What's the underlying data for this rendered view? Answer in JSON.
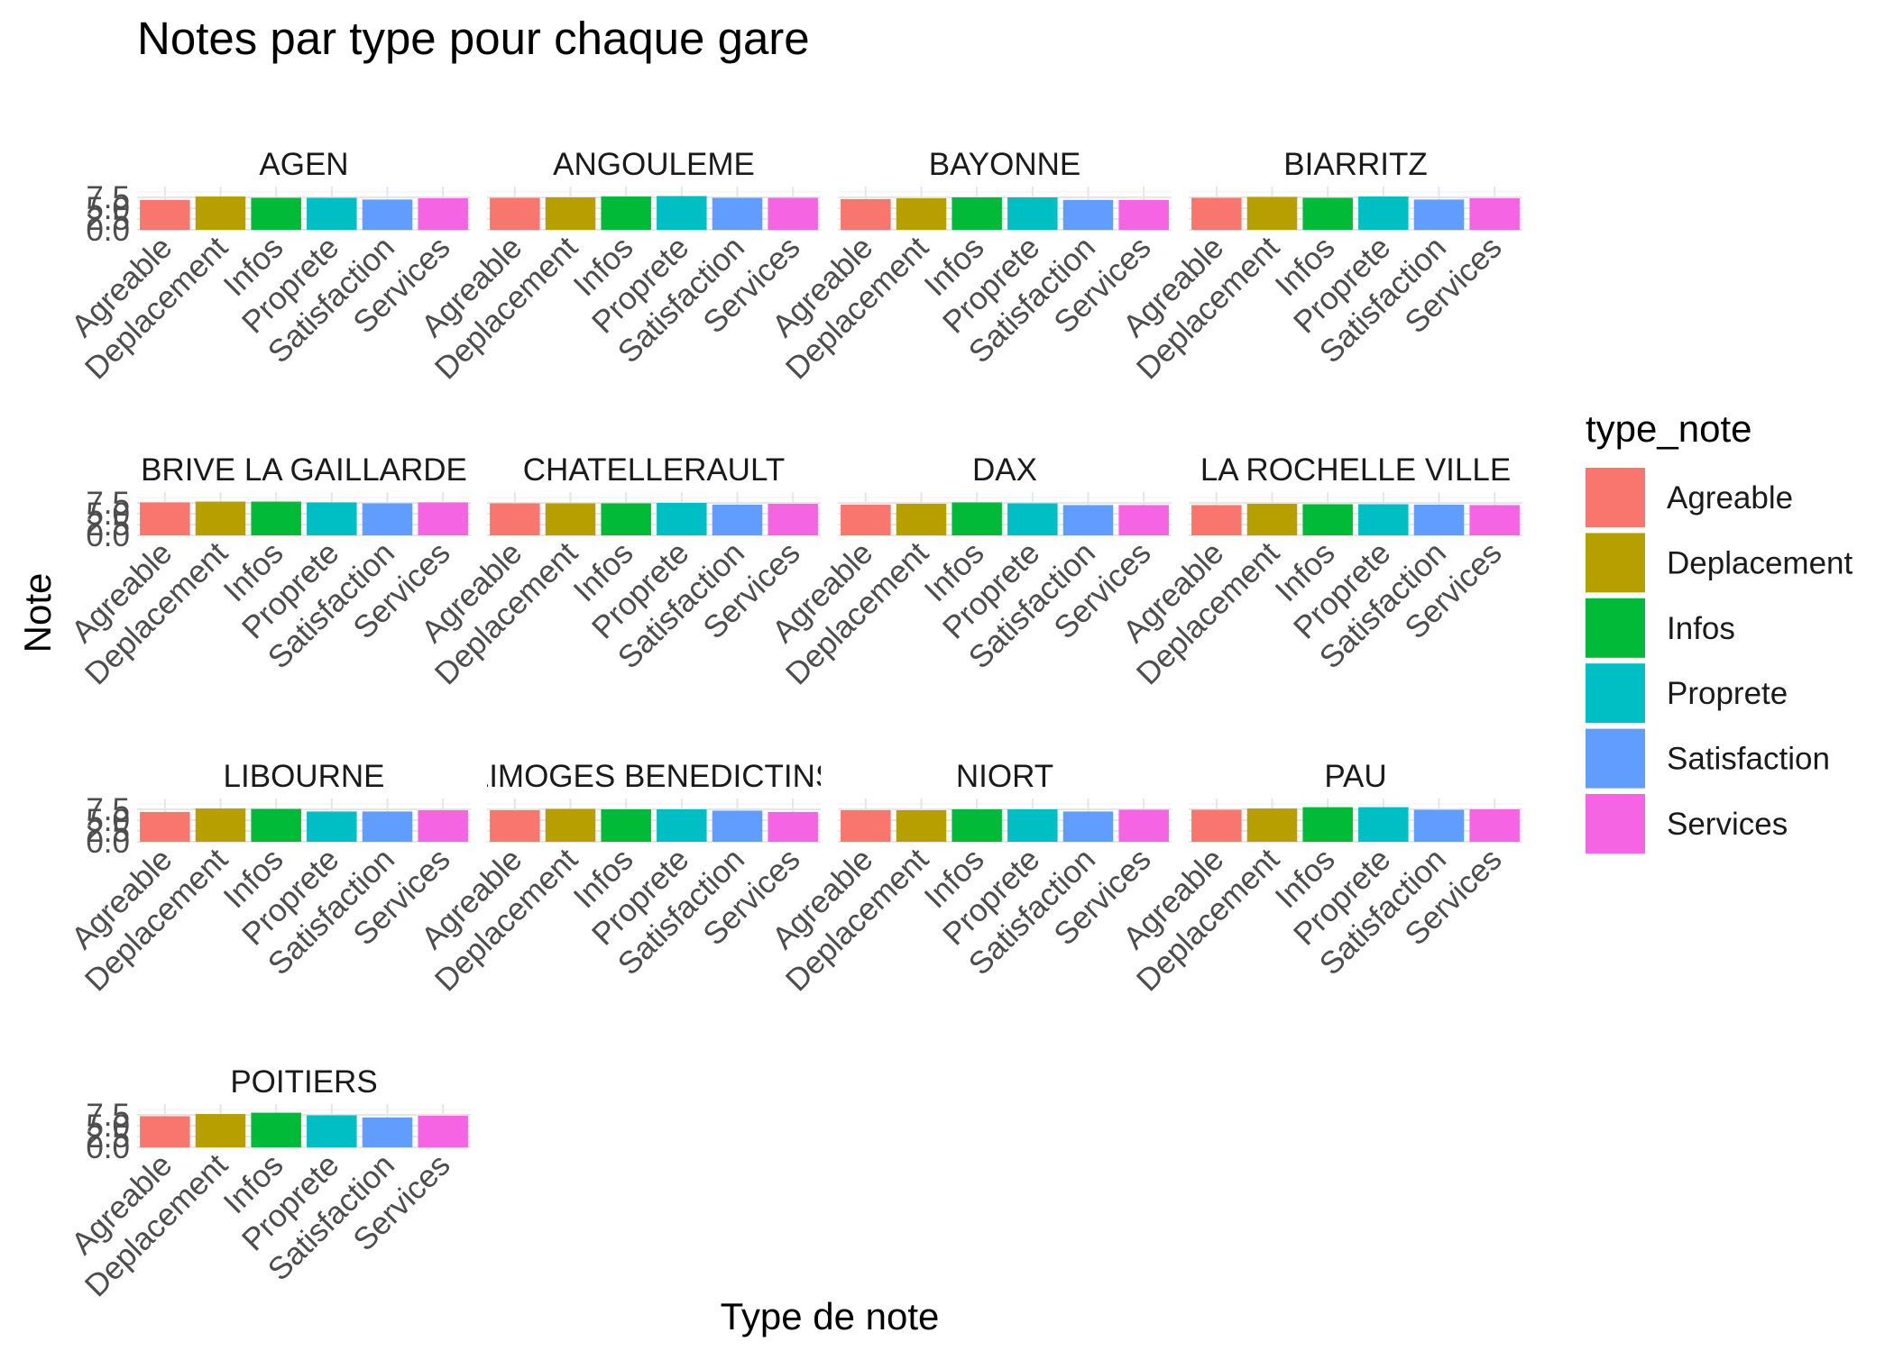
{
  "chart_data": {
    "type": "bar",
    "title": "Notes par type pour chaque gare",
    "xlabel": "Type de note",
    "ylabel": "Note",
    "ylim": [
      0,
      10
    ],
    "y_ticks": [
      "0.0",
      "2.5",
      "5.0",
      "7.5"
    ],
    "grid": true,
    "legend": {
      "title": "type_note",
      "position": "right"
    },
    "categories": [
      "Agreable",
      "Deplacement",
      "Infos",
      "Proprete",
      "Satisfaction",
      "Services"
    ],
    "colors": [
      "#F8766D",
      "#B79F00",
      "#00BA38",
      "#00BFC4",
      "#619CFF",
      "#F564E3"
    ],
    "facets": [
      {
        "name": "AGEN",
        "values": [
          6.9,
          7.7,
          7.4,
          7.4,
          7.0,
          7.3
        ]
      },
      {
        "name": "ANGOULEME",
        "values": [
          7.4,
          7.5,
          7.7,
          7.8,
          7.4,
          7.4
        ]
      },
      {
        "name": "BAYONNE",
        "values": [
          7.1,
          7.3,
          7.5,
          7.5,
          6.9,
          6.9
        ]
      },
      {
        "name": "BIARRITZ",
        "values": [
          7.4,
          7.6,
          7.4,
          7.7,
          7.0,
          7.3
        ]
      },
      {
        "name": "BRIVE LA GAILLARDE",
        "values": [
          7.6,
          7.8,
          7.8,
          7.6,
          7.4,
          7.6
        ]
      },
      {
        "name": "CHATELLERAULT",
        "values": [
          7.4,
          7.4,
          7.4,
          7.5,
          7.1,
          7.3
        ]
      },
      {
        "name": "DAX",
        "values": [
          7.1,
          7.3,
          7.6,
          7.4,
          7.0,
          7.0
        ]
      },
      {
        "name": "LA ROCHELLE VILLE",
        "values": [
          7.0,
          7.3,
          7.2,
          7.2,
          7.1,
          7.0
        ]
      },
      {
        "name": "LIBOURNE",
        "values": [
          6.9,
          7.7,
          7.6,
          7.0,
          7.0,
          7.3
        ]
      },
      {
        "name": "LIMOGES BENEDICTINS",
        "values": [
          7.3,
          7.6,
          7.5,
          7.5,
          7.2,
          6.9
        ]
      },
      {
        "name": "NIORT",
        "values": [
          7.3,
          7.3,
          7.5,
          7.5,
          7.0,
          7.4
        ]
      },
      {
        "name": "PAU",
        "values": [
          7.4,
          7.7,
          8.0,
          8.0,
          7.4,
          7.5
        ]
      },
      {
        "name": "POITIERS",
        "values": [
          7.2,
          7.7,
          8.0,
          7.4,
          6.9,
          7.3
        ]
      }
    ]
  }
}
